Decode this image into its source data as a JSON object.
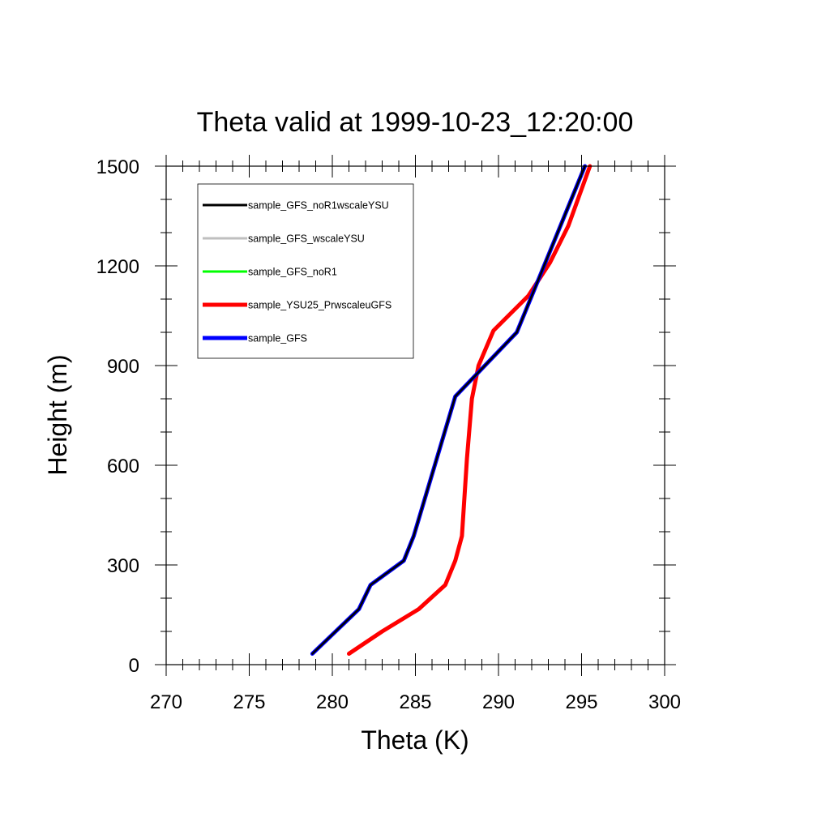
{
  "chart_data": {
    "type": "line",
    "title": "Theta valid at 1999-10-23_12:20:00",
    "xlabel": "Theta (K)",
    "ylabel": "Height (m)",
    "xlim": [
      270,
      300
    ],
    "ylim": [
      0,
      1500
    ],
    "xticks": [
      "270",
      "275",
      "280",
      "285",
      "290",
      "295",
      "300"
    ],
    "yticks": [
      "0",
      "300",
      "600",
      "900",
      "1200",
      "1500"
    ],
    "grid": false,
    "legend_position": "top-left",
    "series": [
      {
        "name": "sample_GFS_noR1wscaleYSU",
        "color": "#000000",
        "x": [
          278.8,
          280.2,
          281.6,
          282.3,
          284.3,
          284.9,
          287.4,
          291.1,
          295.2
        ],
        "y": [
          33,
          100,
          167,
          240,
          313,
          387,
          807,
          1000,
          1500
        ]
      },
      {
        "name": "sample_GFS_wscaleYSU",
        "color": "#bfbfbf",
        "x": [
          278.8,
          280.2,
          281.6,
          282.3,
          284.3,
          284.9,
          287.4,
          291.1,
          295.2
        ],
        "y": [
          33,
          100,
          167,
          240,
          313,
          387,
          807,
          1000,
          1500
        ]
      },
      {
        "name": "sample_GFS_noR1",
        "color": "#00ff00",
        "x": [
          278.8,
          280.2,
          281.6,
          282.3,
          284.3,
          284.9,
          287.4,
          291.1,
          295.2
        ],
        "y": [
          33,
          100,
          167,
          240,
          313,
          387,
          807,
          1000,
          1500
        ]
      },
      {
        "name": "sample_YSU25_PrwscaleuGFS",
        "color": "#ff0000",
        "x": [
          281.0,
          283.0,
          285.2,
          286.8,
          287.4,
          287.8,
          288.1,
          288.4,
          288.8,
          289.7,
          291.8,
          293.1,
          294.2,
          295.5
        ],
        "y": [
          33,
          100,
          167,
          240,
          313,
          387,
          620,
          800,
          900,
          1005,
          1110,
          1210,
          1320,
          1500
        ]
      },
      {
        "name": "sample_GFS",
        "color": "#0000ff",
        "x": [
          278.8,
          280.2,
          281.6,
          282.3,
          284.3,
          284.9,
          287.4,
          291.1,
          295.2
        ],
        "y": [
          33,
          100,
          167,
          240,
          313,
          387,
          807,
          1000,
          1500
        ]
      }
    ]
  }
}
